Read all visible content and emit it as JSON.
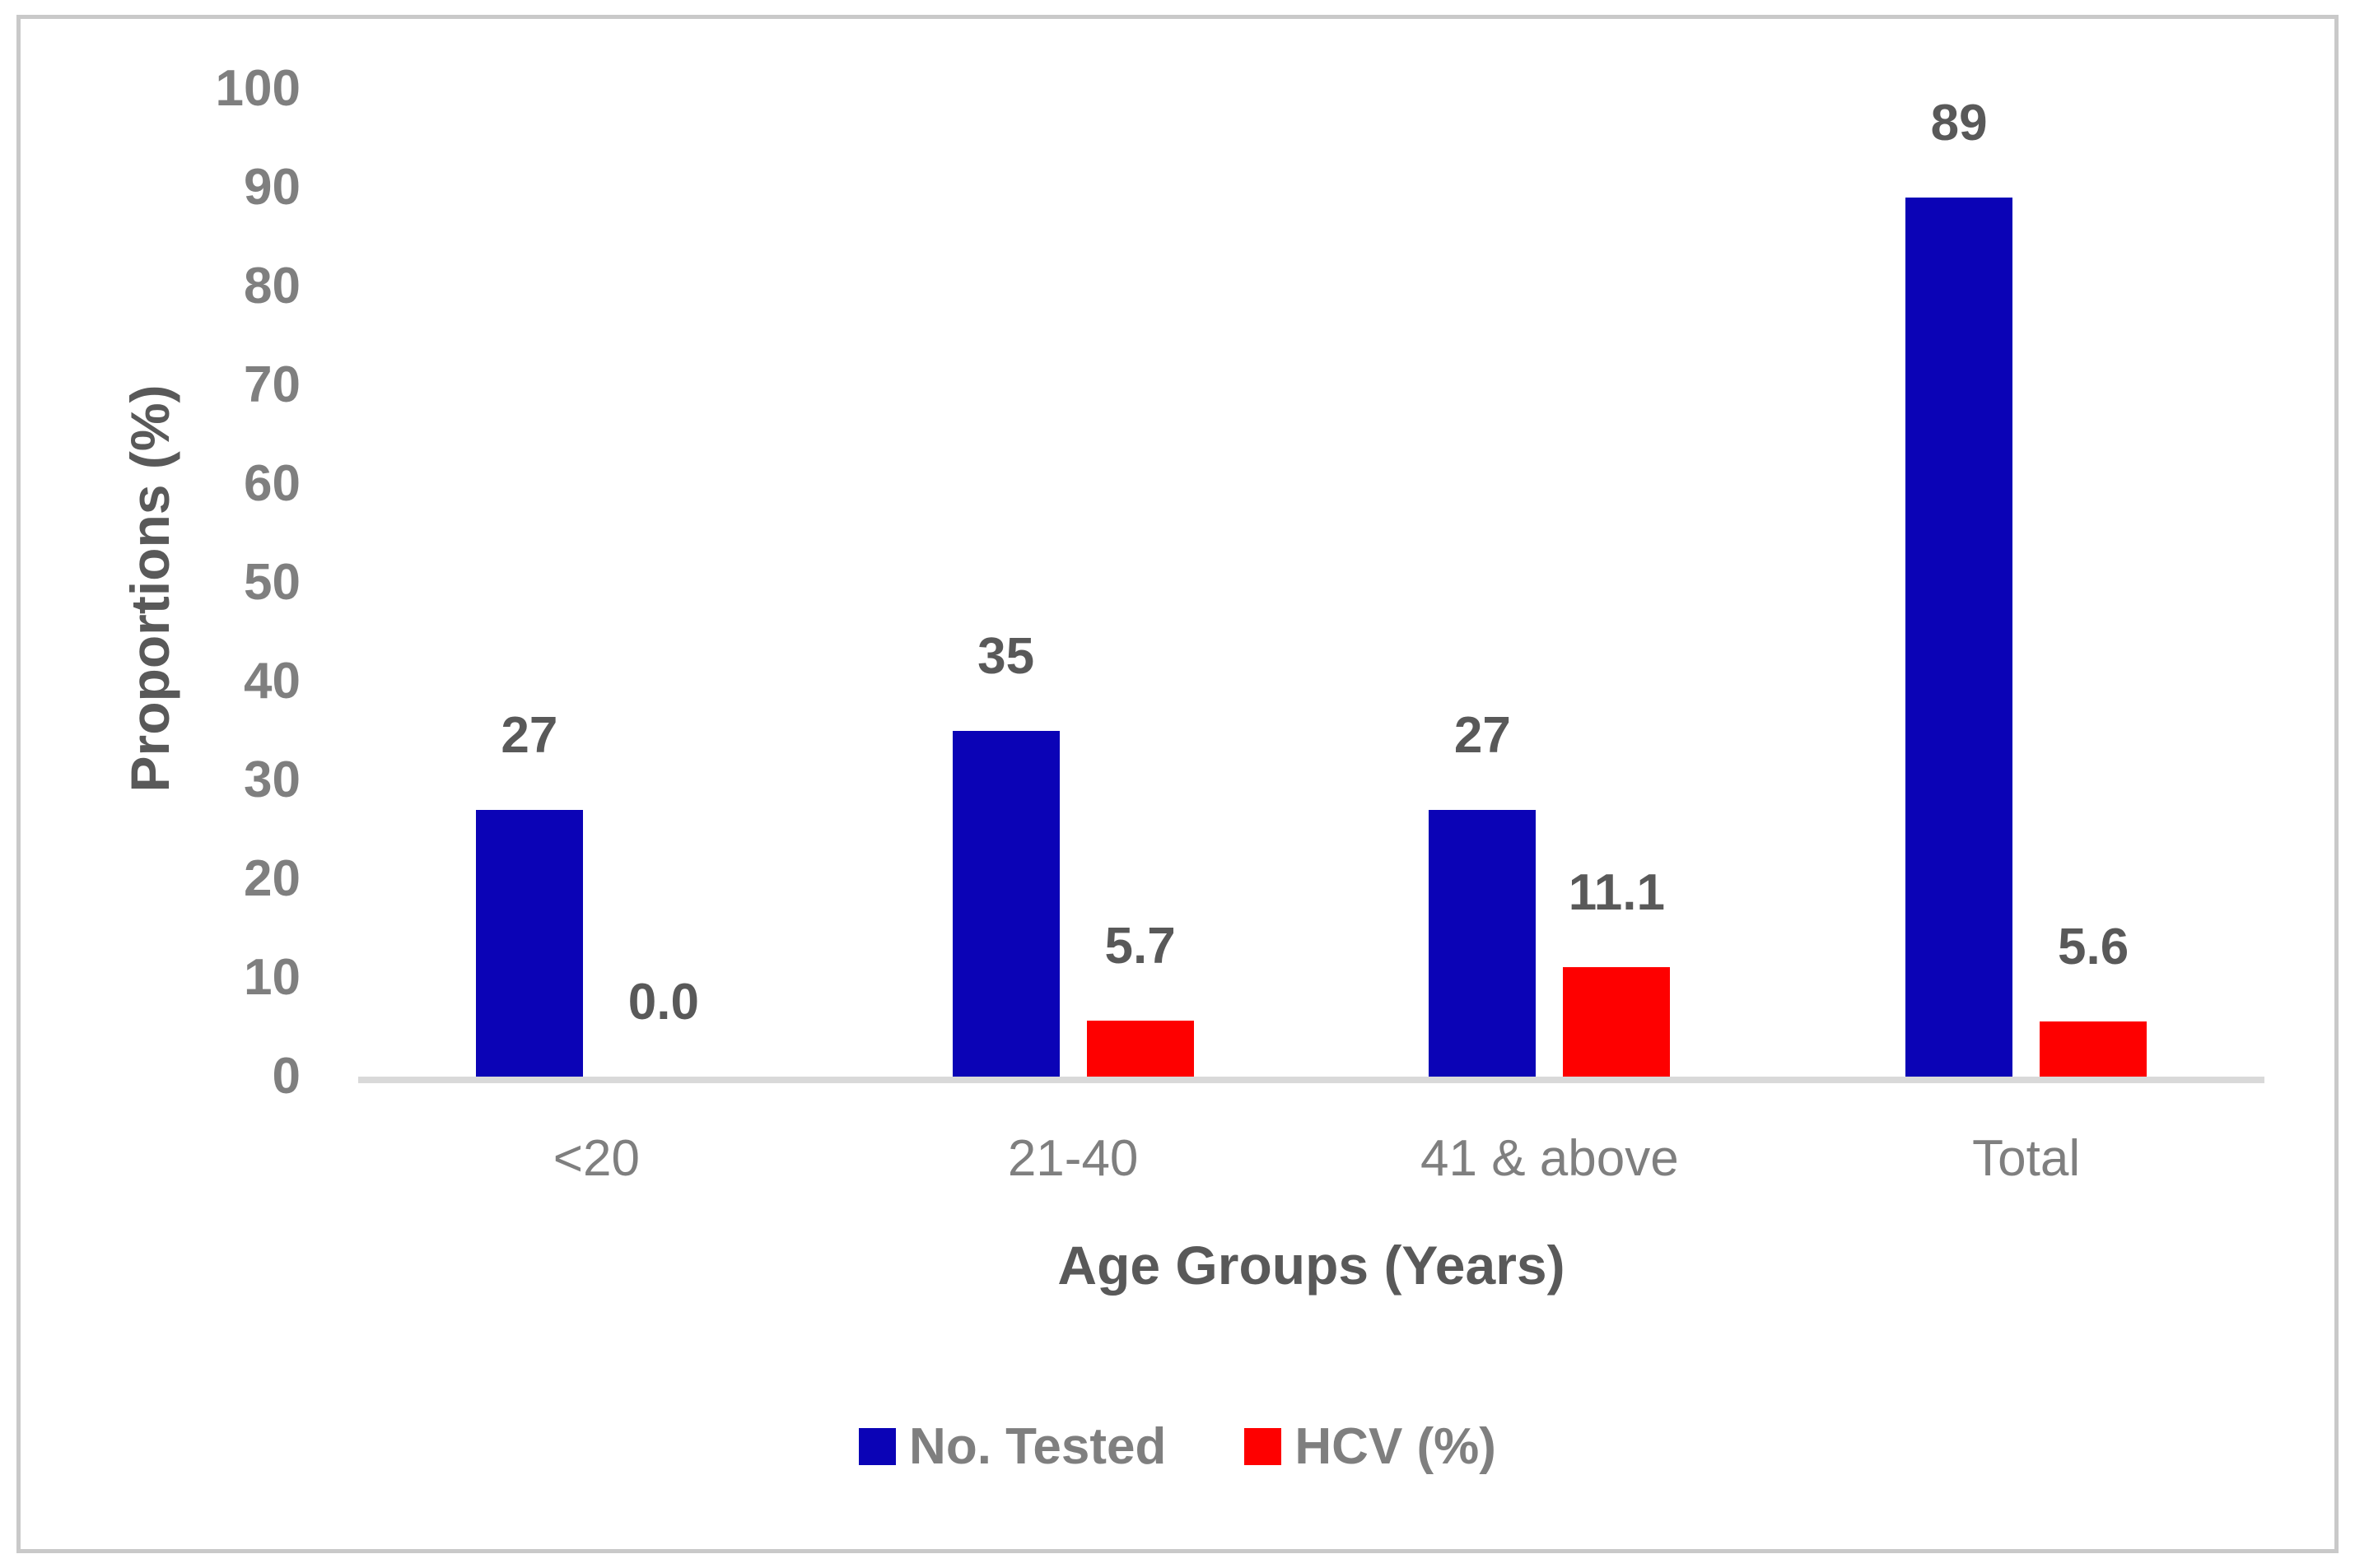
{
  "chart_data": {
    "type": "bar",
    "title": "",
    "categories": [
      "<20",
      "21-40",
      "41 & above",
      "Total"
    ],
    "series": [
      {
        "name": "No. Tested",
        "color": "#0B03B6",
        "values": [
          27,
          35,
          27,
          89
        ],
        "labels": [
          "27",
          "35",
          "27",
          "89"
        ]
      },
      {
        "name": "HCV (%)",
        "color": "#FE0000",
        "values": [
          0.0,
          5.7,
          11.1,
          5.6
        ],
        "labels": [
          "0.0",
          "5.7",
          "11.1",
          "5.6"
        ]
      }
    ],
    "xlabel": "Age Groups (Years)",
    "ylabel": "Proportions (%)",
    "ylim": [
      0,
      100
    ],
    "yticks": [
      0,
      10,
      20,
      30,
      40,
      50,
      60,
      70,
      80,
      90,
      100
    ],
    "grid": false,
    "legend_position": "bottom-center",
    "colors": {
      "tick_label": "#7F7F7F",
      "category_label": "#7F7F7F",
      "data_label": "#595959",
      "axis_title": "#595959",
      "legend_text": "#7F7F7F",
      "axis_line": "#D9D9D9",
      "frame_border": "#C9C9C9",
      "background": "#FFFFFF"
    }
  }
}
